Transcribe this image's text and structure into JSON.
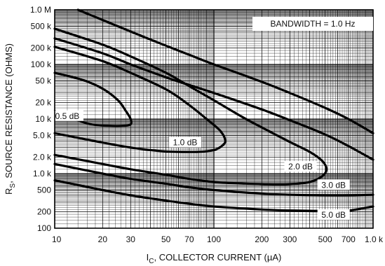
{
  "chart_data": {
    "type": "line",
    "title": "",
    "note": "BANDWIDTH = 1.0 Hz",
    "xlabel": {
      "main": "I",
      "sub": "C",
      "rest": ", COLLECTOR CURRENT (µA)"
    },
    "ylabel": {
      "main": "R",
      "sub": "S",
      "rest": ", SOURCE RESISTANCE (OHMS)"
    },
    "xscale": "log",
    "yscale": "log",
    "xlim": [
      10,
      1000
    ],
    "ylim": [
      100,
      1000000
    ],
    "grid": true,
    "x_ticks": [
      {
        "value": 10,
        "label": "10"
      },
      {
        "value": 20,
        "label": "20"
      },
      {
        "value": 30,
        "label": "30"
      },
      {
        "value": 50,
        "label": "50"
      },
      {
        "value": 70,
        "label": "70"
      },
      {
        "value": 100,
        "label": "100"
      },
      {
        "value": 200,
        "label": "200"
      },
      {
        "value": 300,
        "label": "300"
      },
      {
        "value": 500,
        "label": "500"
      },
      {
        "value": 700,
        "label": "700"
      },
      {
        "value": 1000,
        "label": "1.0 k"
      }
    ],
    "y_ticks": [
      {
        "value": 100,
        "label": "100"
      },
      {
        "value": 200,
        "label": "200"
      },
      {
        "value": 500,
        "label": "500"
      },
      {
        "value": 1000,
        "label": "1.0 k"
      },
      {
        "value": 2000,
        "label": "2.0 k"
      },
      {
        "value": 5000,
        "label": "5.0 k"
      },
      {
        "value": 10000,
        "label": "10 k"
      },
      {
        "value": 20000,
        "label": "20 k"
      },
      {
        "value": 50000,
        "label": "50 k"
      },
      {
        "value": 100000,
        "label": "100 k"
      },
      {
        "value": 200000,
        "label": "200 k"
      },
      {
        "value": 500000,
        "label": "500 k"
      },
      {
        "value": 1000000,
        "label": "1.0 M"
      }
    ],
    "series": [
      {
        "name": "0.5 dB",
        "label_at": [
          12,
          11000
        ],
        "x": [
          10,
          15,
          20,
          25,
          28,
          30,
          30,
          27,
          22,
          16,
          10
        ],
        "y": [
          70000,
          52000,
          36000,
          22000,
          14000,
          10000,
          8000,
          7500,
          7500,
          8300,
          14000
        ]
      },
      {
        "name": "1.0 dB",
        "label_at": [
          66,
          3600
        ],
        "x": [
          10,
          20,
          30,
          50,
          70,
          90,
          110,
          118,
          112,
          100,
          80,
          60,
          45,
          30,
          20,
          10
        ],
        "y": [
          210000,
          115000,
          70000,
          35000,
          18000,
          10000,
          6000,
          4000,
          3200,
          2700,
          2500,
          2500,
          2600,
          3000,
          3700,
          5500
        ]
      },
      {
        "name": "2.0 dB",
        "label_at": [
          350,
          1300
        ],
        "x": [
          10,
          20,
          30,
          50,
          70,
          100,
          150,
          200,
          300,
          400,
          480,
          510,
          480,
          400,
          300,
          200,
          150,
          100,
          70,
          50,
          30,
          20,
          10
        ],
        "y": [
          450000,
          230000,
          140000,
          70000,
          40000,
          22000,
          11000,
          7000,
          3800,
          2500,
          1700,
          1200,
          900,
          700,
          640,
          640,
          660,
          700,
          800,
          950,
          1200,
          1500,
          2200
        ]
      },
      {
        "name": "3.0 dB",
        "label_at": [
          565,
          600
        ],
        "x": [
          10,
          20,
          30,
          50,
          70,
          100,
          200,
          300,
          500,
          700,
          1000
        ],
        "y": [
          1500,
          1000,
          800,
          650,
          560,
          500,
          430,
          410,
          400,
          400,
          410
        ]
      },
      {
        "name": "5.0 dB",
        "label_at": [
          565,
          170
        ],
        "x": [
          10,
          20,
          30,
          50,
          70,
          100,
          200,
          300,
          500,
          700,
          1000
        ],
        "y": [
          750,
          500,
          400,
          320,
          280,
          250,
          220,
          210,
          205,
          210,
          250
        ]
      },
      {
        "name": "",
        "x": [
          10,
          20,
          30,
          50,
          70,
          100,
          200,
          300,
          500,
          700,
          1000
        ],
        "y": [
          300000,
          160000,
          100000,
          58000,
          42000,
          30000,
          15000,
          9500,
          5200,
          3200,
          1800
        ]
      },
      {
        "name": "",
        "x": [
          14,
          20,
          30,
          50,
          70,
          100,
          200,
          300,
          500,
          700,
          1000
        ],
        "y": [
          1000000,
          650000,
          400000,
          220000,
          150000,
          100000,
          48000,
          30000,
          16000,
          10000,
          5500
        ]
      }
    ]
  }
}
